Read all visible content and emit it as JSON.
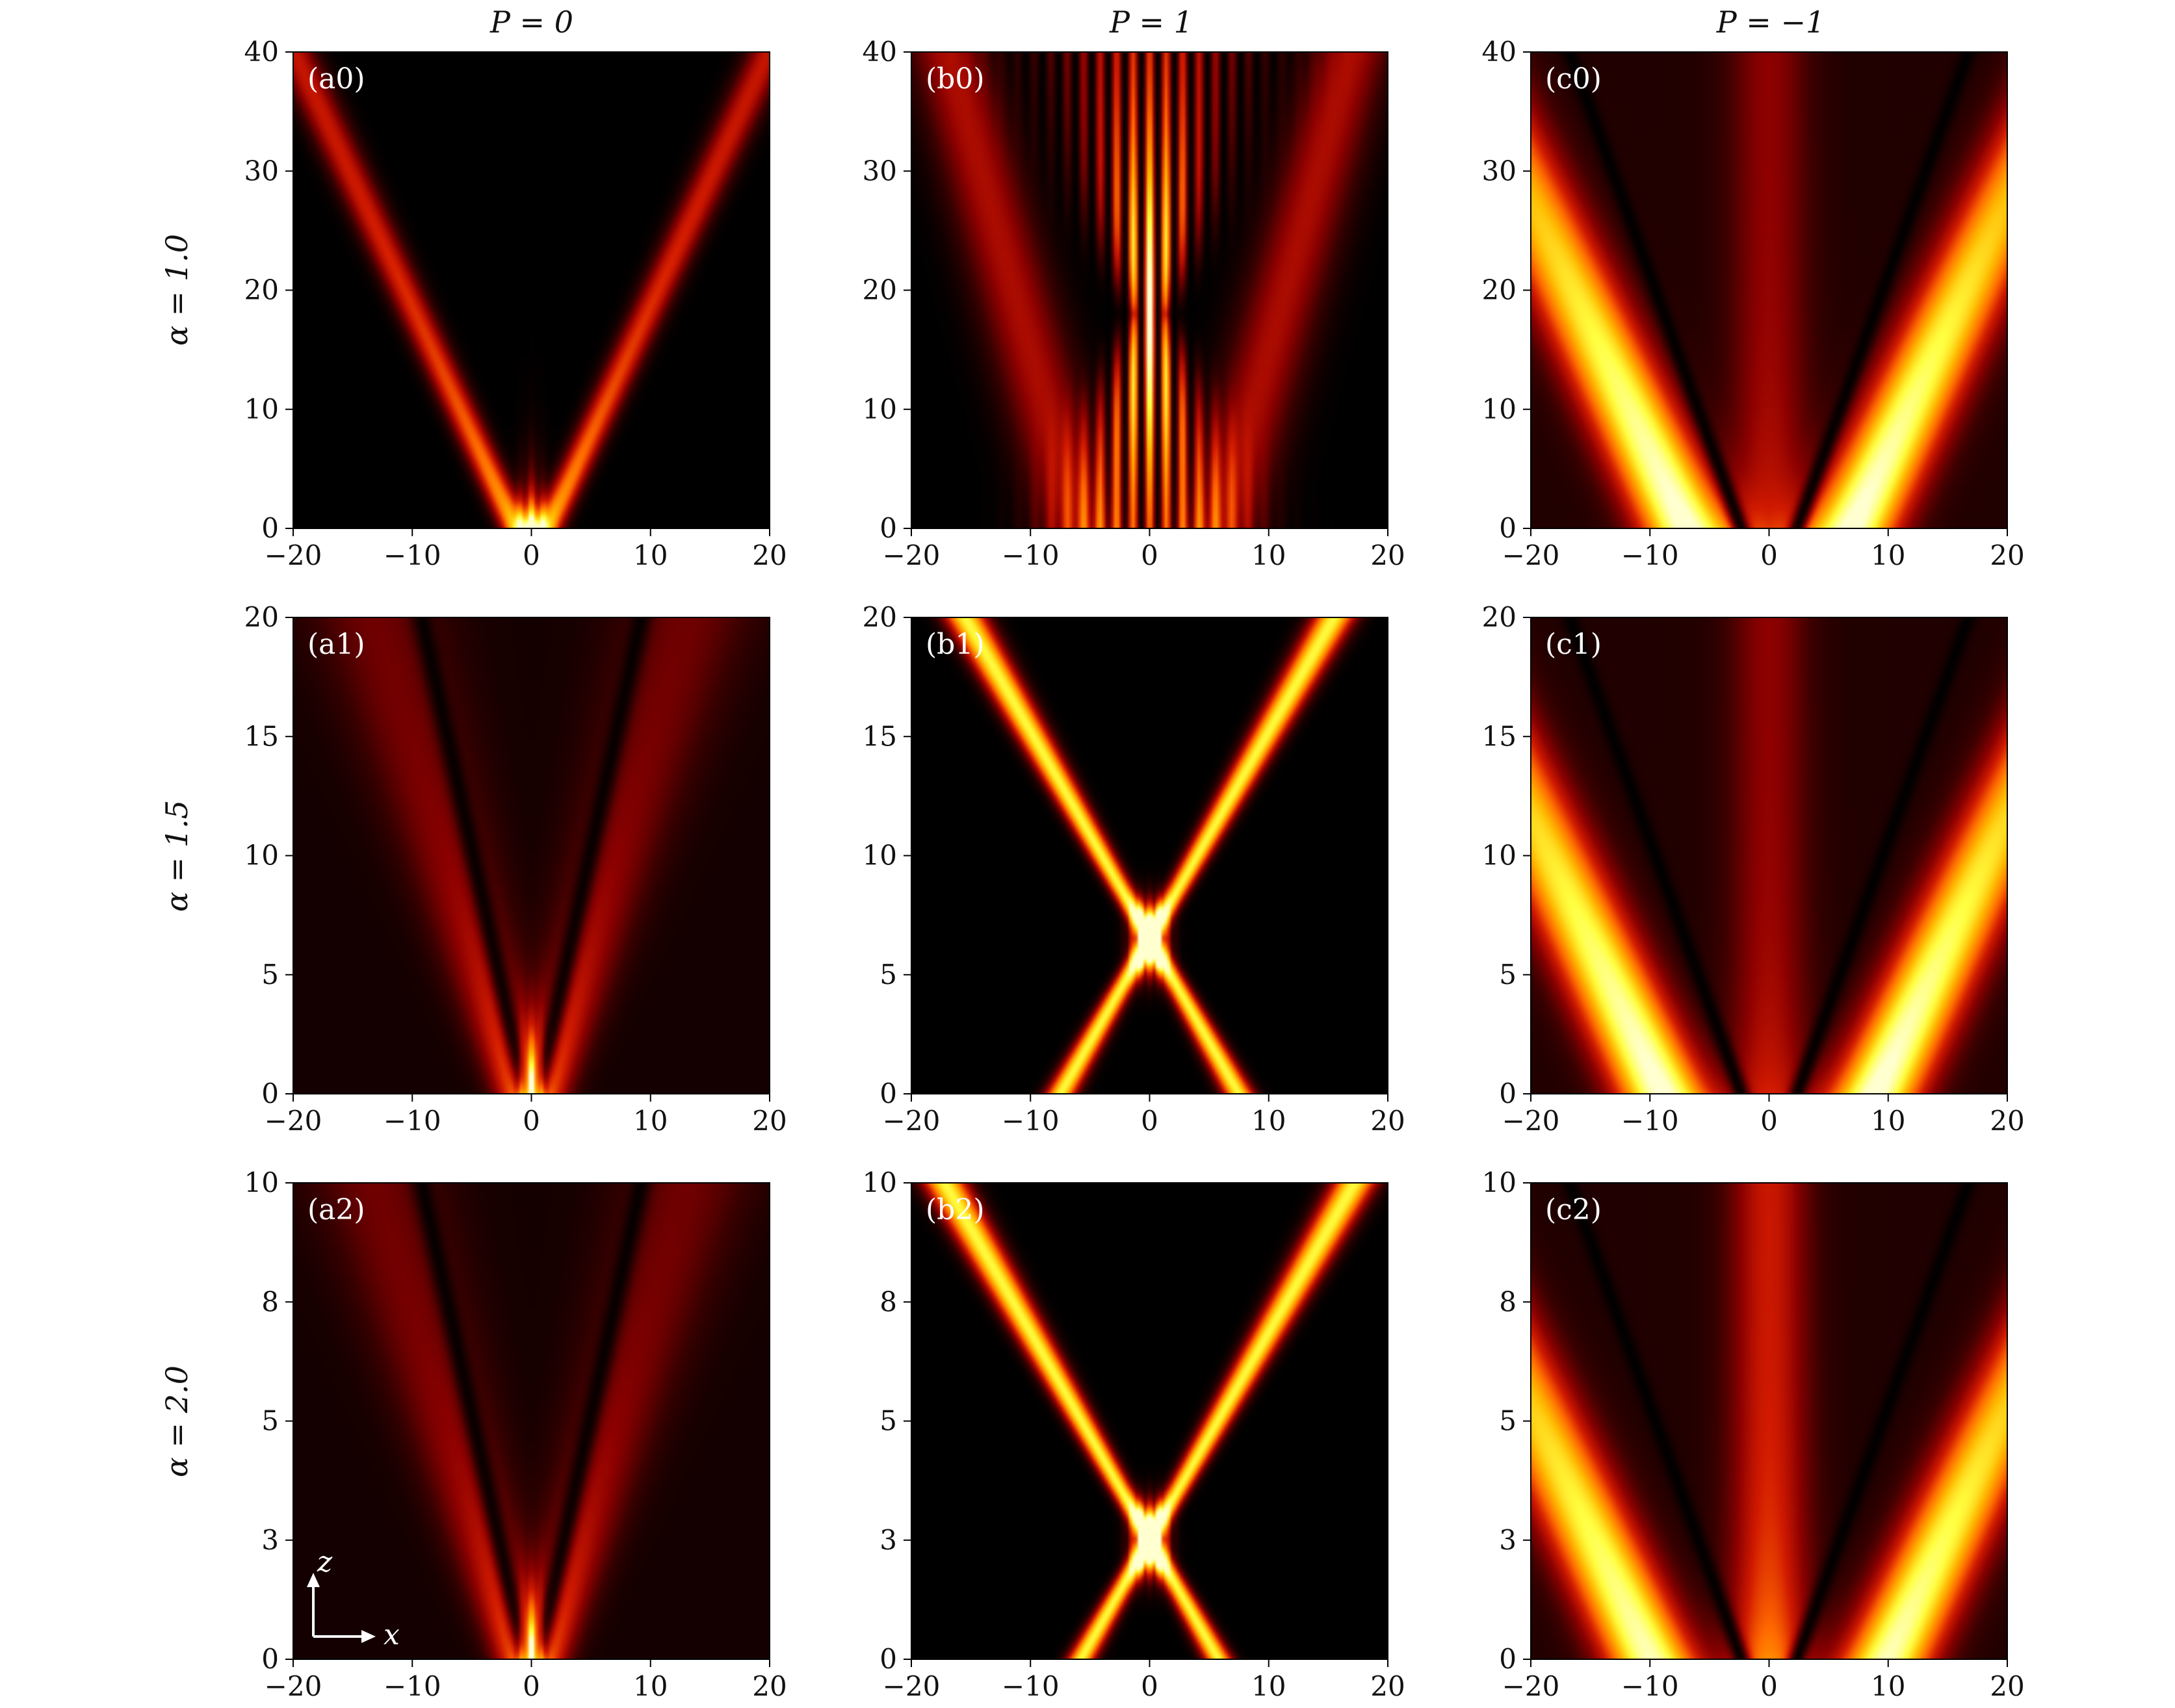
{
  "figure": {
    "column_titles": [
      "P = 0",
      "P = 1",
      "P = −1"
    ],
    "row_labels": [
      "α = 1.0",
      "α = 1.5",
      "α = 2.0"
    ],
    "inset_axis_labels": {
      "vertical": "z",
      "horizontal": "x"
    }
  },
  "colors": {
    "colormap": [
      "#000000",
      "#3a0000",
      "#8a0000",
      "#d11a00",
      "#ff6a00",
      "#ffb800",
      "#ffff40",
      "#ffffd0"
    ],
    "panel_label_text": "#ffffff",
    "axis_text": "#111111"
  },
  "chart_data": [
    {
      "id": "a0",
      "type": "heatmap",
      "panel_label": "(a0)",
      "xlim": [
        -20,
        20
      ],
      "ylim": [
        0,
        40
      ],
      "x_ticks": [
        -20,
        -10,
        0,
        10,
        20
      ],
      "y_ticks": [
        0,
        10,
        20,
        30,
        40
      ],
      "x_tick_labels": [
        "−20",
        "−10",
        "0",
        "10",
        "20"
      ],
      "y_tick_labels": [
        "0",
        "10",
        "20",
        "30",
        "40"
      ],
      "features": {
        "variant": "spread",
        "bright_near_origin": true,
        "arm_slope_dx_per_dz": 0.5
      }
    },
    {
      "id": "b0",
      "type": "heatmap",
      "panel_label": "(b0)",
      "xlim": [
        -20,
        20
      ],
      "ylim": [
        0,
        40
      ],
      "x_ticks": [
        -20,
        -10,
        0,
        10,
        20
      ],
      "y_ticks": [
        0,
        10,
        20,
        30,
        40
      ],
      "x_tick_labels": [
        "−20",
        "−10",
        "0",
        "10",
        "20"
      ],
      "y_tick_labels": [
        "0",
        "10",
        "20",
        "30",
        "40"
      ],
      "features": {
        "variant": "focus_fringes",
        "focus_z": 18
      }
    },
    {
      "id": "c0",
      "type": "heatmap",
      "panel_label": "(c0)",
      "xlim": [
        -20,
        20
      ],
      "ylim": [
        0,
        40
      ],
      "x_ticks": [
        -20,
        -10,
        0,
        10,
        20
      ],
      "y_ticks": [
        0,
        10,
        20,
        30,
        40
      ],
      "x_tick_labels": [
        "−20",
        "−10",
        "0",
        "10",
        "20"
      ],
      "y_tick_labels": [
        "0",
        "10",
        "20",
        "30",
        "40"
      ],
      "features": {
        "variant": "broad_arms",
        "arm_x_at_z0": 7
      }
    },
    {
      "id": "a1",
      "type": "heatmap",
      "panel_label": "(a1)",
      "xlim": [
        -20,
        20
      ],
      "ylim": [
        0,
        20
      ],
      "x_ticks": [
        -20,
        -10,
        0,
        10,
        20
      ],
      "y_ticks": [
        0,
        5,
        10,
        15,
        20
      ],
      "x_tick_labels": [
        "−20",
        "−10",
        "0",
        "10",
        "20"
      ],
      "y_tick_labels": [
        "0",
        "5",
        "10",
        "15",
        "20"
      ],
      "features": {
        "variant": "spread_weak"
      }
    },
    {
      "id": "b1",
      "type": "heatmap",
      "panel_label": "(b1)",
      "xlim": [
        -20,
        20
      ],
      "ylim": [
        0,
        20
      ],
      "x_ticks": [
        -20,
        -10,
        0,
        10,
        20
      ],
      "y_ticks": [
        0,
        5,
        10,
        15,
        20
      ],
      "x_tick_labels": [
        "−20",
        "−10",
        "0",
        "10",
        "20"
      ],
      "y_tick_labels": [
        "0",
        "5",
        "10",
        "15",
        "20"
      ],
      "features": {
        "variant": "x_focus",
        "focus_z": 6.5
      }
    },
    {
      "id": "c1",
      "type": "heatmap",
      "panel_label": "(c1)",
      "xlim": [
        -20,
        20
      ],
      "ylim": [
        0,
        20
      ],
      "x_ticks": [
        -20,
        -10,
        0,
        10,
        20
      ],
      "y_ticks": [
        0,
        5,
        10,
        15,
        20
      ],
      "x_tick_labels": [
        "−20",
        "−10",
        "0",
        "10",
        "20"
      ],
      "y_tick_labels": [
        "0",
        "5",
        "10",
        "15",
        "20"
      ],
      "features": {
        "variant": "broad_arms",
        "arm_x_at_z0": 9
      }
    },
    {
      "id": "a2",
      "type": "heatmap",
      "panel_label": "(a2)",
      "xlim": [
        -20,
        20
      ],
      "ylim": [
        0,
        10
      ],
      "x_ticks": [
        -20,
        -10,
        0,
        10,
        20
      ],
      "y_ticks": [
        0,
        2.5,
        5,
        7.5,
        10
      ],
      "x_tick_labels": [
        "−20",
        "−10",
        "0",
        "10",
        "20"
      ],
      "y_tick_labels": [
        "0",
        "3",
        "5",
        "8",
        "10"
      ],
      "features": {
        "variant": "spread_weak"
      }
    },
    {
      "id": "b2",
      "type": "heatmap",
      "panel_label": "(b2)",
      "xlim": [
        -20,
        20
      ],
      "ylim": [
        0,
        10
      ],
      "x_ticks": [
        -20,
        -10,
        0,
        10,
        20
      ],
      "y_ticks": [
        0,
        2.5,
        5,
        7.5,
        10
      ],
      "x_tick_labels": [
        "−20",
        "−10",
        "0",
        "10",
        "20"
      ],
      "y_tick_labels": [
        "0",
        "3",
        "5",
        "8",
        "10"
      ],
      "features": {
        "variant": "x_focus",
        "focus_z": 2.5
      }
    },
    {
      "id": "c2",
      "type": "heatmap",
      "panel_label": "(c2)",
      "xlim": [
        -20,
        20
      ],
      "ylim": [
        0,
        10
      ],
      "x_ticks": [
        -20,
        -10,
        0,
        10,
        20
      ],
      "y_ticks": [
        0,
        2.5,
        5,
        7.5,
        10
      ],
      "x_tick_labels": [
        "−20",
        "−10",
        "0",
        "10",
        "20"
      ],
      "y_tick_labels": [
        "0",
        "3",
        "5",
        "8",
        "10"
      ],
      "features": {
        "variant": "broad_arms_strong",
        "arm_x_at_z0": 10
      }
    }
  ]
}
